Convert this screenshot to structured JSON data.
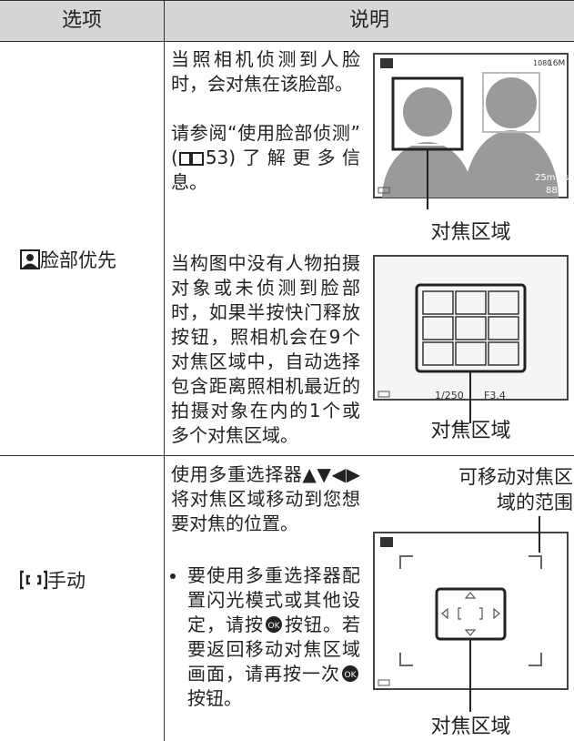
{
  "header": {
    "option": "选项",
    "description": "说明"
  },
  "rows": [
    {
      "option": "脸部优先",
      "para1": "当照相机侦测到人脸时，会对焦在该脸部。",
      "para2": [
        "请参阅“使用脸部侦测”(",
        "53)了解更多信息。"
      ],
      "para3": "当构图中没有人物拍摄对象或未侦测到脸部时，如果半按快门释放按钮，照相机会在9个对焦区域中，自动选择包含距离照相机最近的拍摄对象在内的1个或多个对焦区域。",
      "figures": [
        {
          "caption": "对焦区域",
          "screen_texts": [
            "1080",
            "16M",
            "25m 0s",
            "880"
          ]
        },
        {
          "caption": "对焦区域",
          "screen_texts": [
            "1/250",
            "F3.4"
          ]
        }
      ]
    },
    {
      "option": "手动",
      "intro": "使用多重选择器▲▼◀▶将对焦区域移动到您想要对焦的位置。",
      "bullet": [
        "要使用多重选择器配置闪光模式或其他设定，请按",
        "按钮。若要返回移动对焦区域画面，请再按一次",
        "按钮。"
      ],
      "figure": {
        "label": "可移动对焦区域的范围",
        "caption": "对焦区域"
      }
    }
  ]
}
